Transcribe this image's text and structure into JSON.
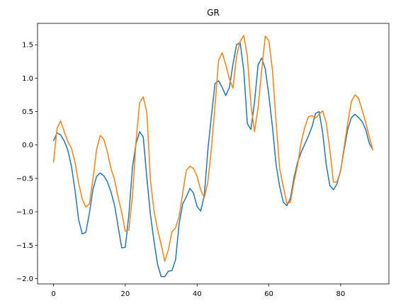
{
  "chart_data": {
    "type": "line",
    "title": "GR",
    "xlabel": "",
    "ylabel": "",
    "xlim": [
      -4.45,
      93.45
    ],
    "ylim": [
      -2.08,
      1.82
    ],
    "xticks": [
      0,
      20,
      40,
      60,
      80
    ],
    "xtick_labels": [
      "0",
      "20",
      "40",
      "60",
      "80"
    ],
    "yticks": [
      -2.0,
      -1.5,
      -1.0,
      -0.5,
      0.0,
      0.5,
      1.0,
      1.5
    ],
    "ytick_labels": [
      "−2.0",
      "−1.5",
      "−1.0",
      "−0.5",
      "0.0",
      "0.5",
      "1.0",
      "1.5"
    ],
    "grid": false,
    "x": [
      0,
      1,
      2,
      3,
      4,
      5,
      6,
      7,
      8,
      9,
      10,
      11,
      12,
      13,
      14,
      15,
      16,
      17,
      18,
      19,
      20,
      21,
      22,
      23,
      24,
      25,
      26,
      27,
      28,
      29,
      30,
      31,
      32,
      33,
      34,
      35,
      36,
      37,
      38,
      39,
      40,
      41,
      42,
      43,
      44,
      45,
      46,
      47,
      48,
      49,
      50,
      51,
      52,
      53,
      54,
      55,
      56,
      57,
      58,
      59,
      60,
      61,
      62,
      63,
      64,
      65,
      66,
      67,
      68,
      69,
      70,
      71,
      72,
      73,
      74,
      75,
      76,
      77,
      78,
      79,
      80,
      81,
      82,
      83,
      84,
      85,
      86,
      87,
      88,
      89
    ],
    "series": [
      {
        "color": "#1f77b4",
        "values": [
          0.06,
          0.18,
          0.15,
          0.06,
          -0.08,
          -0.32,
          -0.68,
          -1.12,
          -1.33,
          -1.31,
          -1.02,
          -0.66,
          -0.47,
          -0.42,
          -0.46,
          -0.55,
          -0.7,
          -0.9,
          -1.22,
          -1.54,
          -1.53,
          -1.04,
          -0.33,
          0.02,
          0.2,
          0.12,
          -0.49,
          -1.04,
          -1.44,
          -1.79,
          -1.97,
          -1.97,
          -1.89,
          -1.88,
          -1.72,
          -1.18,
          -0.88,
          -0.78,
          -0.65,
          -0.72,
          -0.92,
          -0.99,
          -0.76,
          -0.08,
          0.44,
          0.92,
          0.96,
          0.86,
          0.74,
          0.86,
          1.21,
          1.5,
          1.53,
          1.12,
          0.32,
          0.23,
          0.64,
          1.2,
          1.3,
          1.14,
          0.74,
          0.27,
          -0.29,
          -0.62,
          -0.85,
          -0.91,
          -0.8,
          -0.49,
          -0.26,
          -0.11,
          0.01,
          0.13,
          0.27,
          0.47,
          0.5,
          0.18,
          -0.3,
          -0.61,
          -0.67,
          -0.58,
          -0.38,
          -0.06,
          0.24,
          0.41,
          0.46,
          0.41,
          0.35,
          0.23,
          0.02,
          -0.07
        ]
      },
      {
        "color": "#ff7f0e",
        "values": [
          -0.26,
          0.25,
          0.36,
          0.2,
          0.05,
          -0.05,
          -0.26,
          -0.57,
          -0.81,
          -0.93,
          -0.88,
          -0.51,
          -0.07,
          0.14,
          0.09,
          -0.1,
          -0.35,
          -0.52,
          -0.78,
          -1.01,
          -1.29,
          -1.27,
          -0.76,
          0.06,
          0.63,
          0.72,
          0.49,
          -0.53,
          -0.98,
          -1.27,
          -1.49,
          -1.74,
          -1.57,
          -1.3,
          -1.24,
          -1.07,
          -0.72,
          -0.38,
          -0.32,
          -0.35,
          -0.47,
          -0.67,
          -0.79,
          -0.56,
          -0.05,
          0.59,
          1.27,
          1.38,
          1.2,
          0.99,
          0.85,
          1.33,
          1.55,
          1.64,
          1.33,
          0.61,
          0.2,
          0.56,
          1.12,
          1.63,
          1.56,
          1.12,
          0.36,
          -0.35,
          -0.62,
          -0.87,
          -0.86,
          -0.55,
          -0.3,
          0.04,
          0.26,
          0.42,
          0.44,
          0.4,
          0.46,
          0.51,
          0.33,
          -0.08,
          -0.56,
          -0.55,
          -0.39,
          -0.02,
          0.33,
          0.65,
          0.75,
          0.7,
          0.52,
          0.33,
          0.12,
          -0.08
        ]
      }
    ]
  }
}
